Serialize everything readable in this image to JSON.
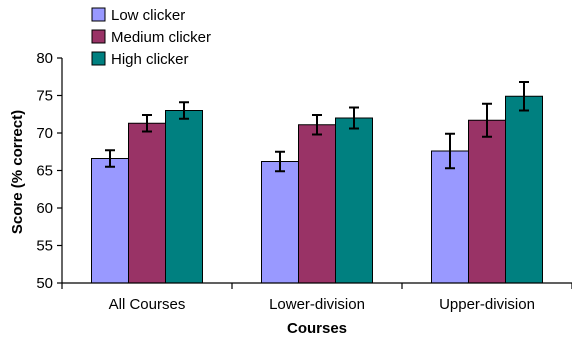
{
  "chart_data": {
    "type": "bar",
    "title": "",
    "xlabel": "Courses",
    "ylabel": "Score (% correct)",
    "ylim": [
      50,
      80
    ],
    "yticks": [
      50,
      55,
      60,
      65,
      70,
      75,
      80
    ],
    "categories": [
      "All Courses",
      "Lower-division",
      "Upper-division"
    ],
    "series": [
      {
        "name": "Low clicker",
        "color": "#9999ff",
        "values": [
          66.6,
          66.2,
          67.6
        ],
        "errors": [
          1.1,
          1.3,
          2.3
        ]
      },
      {
        "name": "Medium clicker",
        "color": "#993366",
        "values": [
          71.3,
          71.1,
          71.7
        ],
        "errors": [
          1.1,
          1.3,
          2.2
        ]
      },
      {
        "name": "High clicker",
        "color": "#008080",
        "values": [
          73.0,
          72.0,
          74.9
        ],
        "errors": [
          1.1,
          1.4,
          1.9
        ]
      }
    ],
    "legend_position": "top-left",
    "grid": false
  }
}
